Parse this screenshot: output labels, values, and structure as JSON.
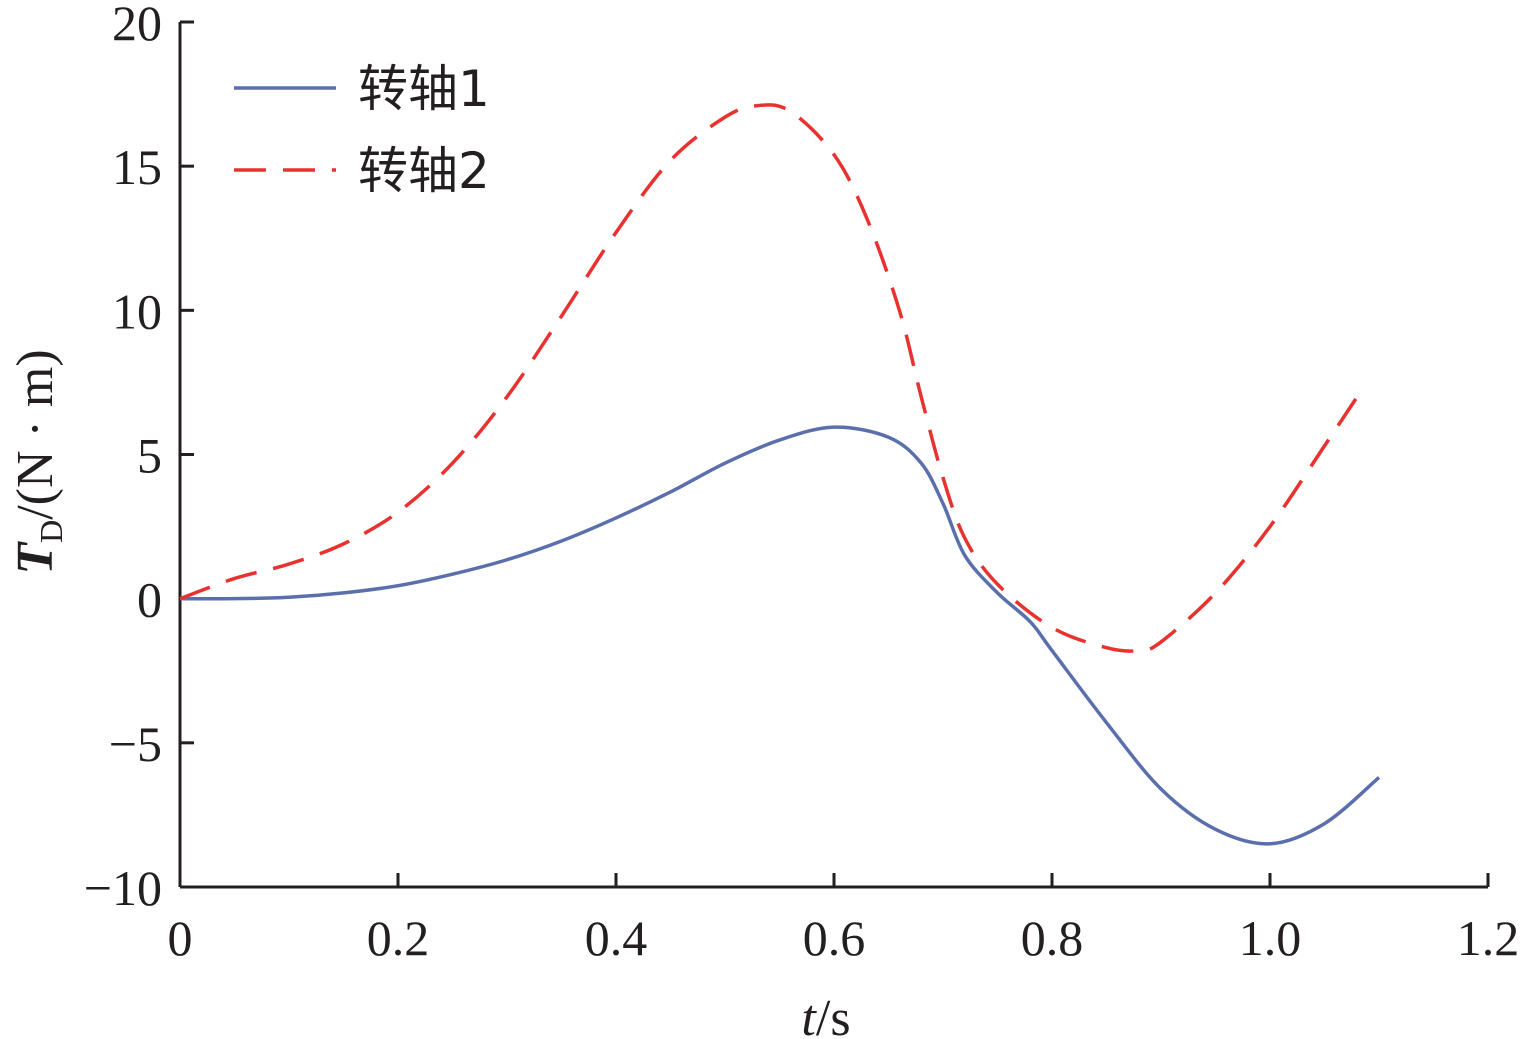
{
  "chart_data": {
    "type": "line",
    "xlabel": {
      "var": "t",
      "unit": "/s"
    },
    "ylabel": {
      "var": "T",
      "sub": "D",
      "unit": "/(N · m)"
    },
    "xlim": [
      0,
      1.2
    ],
    "ylim": [
      -10,
      20
    ],
    "x_ticks": [
      0,
      0.2,
      0.4,
      0.6,
      0.8,
      1.0,
      1.2
    ],
    "x_tick_labels": [
      "0",
      "0.2",
      "0.4",
      "0.6",
      "0.8",
      "1.0",
      "1.2"
    ],
    "y_ticks": [
      -10,
      -5,
      0,
      5,
      10,
      15,
      20
    ],
    "y_tick_labels": [
      "−10",
      "−5",
      "0",
      "5",
      "10",
      "15",
      "20"
    ],
    "grid": false,
    "legend_position": "top-left",
    "series": [
      {
        "name": "转轴1",
        "color": "#5b6fad",
        "style": "solid",
        "x": [
          0,
          0.05,
          0.1,
          0.15,
          0.2,
          0.25,
          0.3,
          0.35,
          0.4,
          0.45,
          0.5,
          0.55,
          0.6,
          0.65,
          0.68,
          0.7,
          0.72,
          0.75,
          0.78,
          0.8,
          0.85,
          0.9,
          0.95,
          1.0,
          1.05,
          1.1
        ],
        "y": [
          0,
          0,
          0.05,
          0.2,
          0.45,
          0.85,
          1.35,
          2.0,
          2.8,
          3.7,
          4.7,
          5.5,
          5.95,
          5.6,
          4.7,
          3.3,
          1.5,
          0.2,
          -0.8,
          -1.8,
          -4.3,
          -6.6,
          -8.0,
          -8.5,
          -7.8,
          -6.2
        ]
      },
      {
        "name": "转轴2",
        "color": "#e8322f",
        "style": "dashed",
        "x": [
          0,
          0.05,
          0.1,
          0.15,
          0.2,
          0.25,
          0.3,
          0.35,
          0.4,
          0.45,
          0.5,
          0.53,
          0.56,
          0.6,
          0.63,
          0.66,
          0.68,
          0.7,
          0.72,
          0.75,
          0.8,
          0.85,
          0.88,
          0.9,
          0.95,
          1.0,
          1.05,
          1.08
        ],
        "y": [
          0,
          0.7,
          1.2,
          1.9,
          3.0,
          4.7,
          7.0,
          9.8,
          12.7,
          15.2,
          16.7,
          17.1,
          16.9,
          15.4,
          13.2,
          10.0,
          7.0,
          4.2,
          2.1,
          0.5,
          -1.0,
          -1.7,
          -1.8,
          -1.5,
          0.2,
          2.5,
          5.3,
          7.0
        ]
      }
    ]
  }
}
